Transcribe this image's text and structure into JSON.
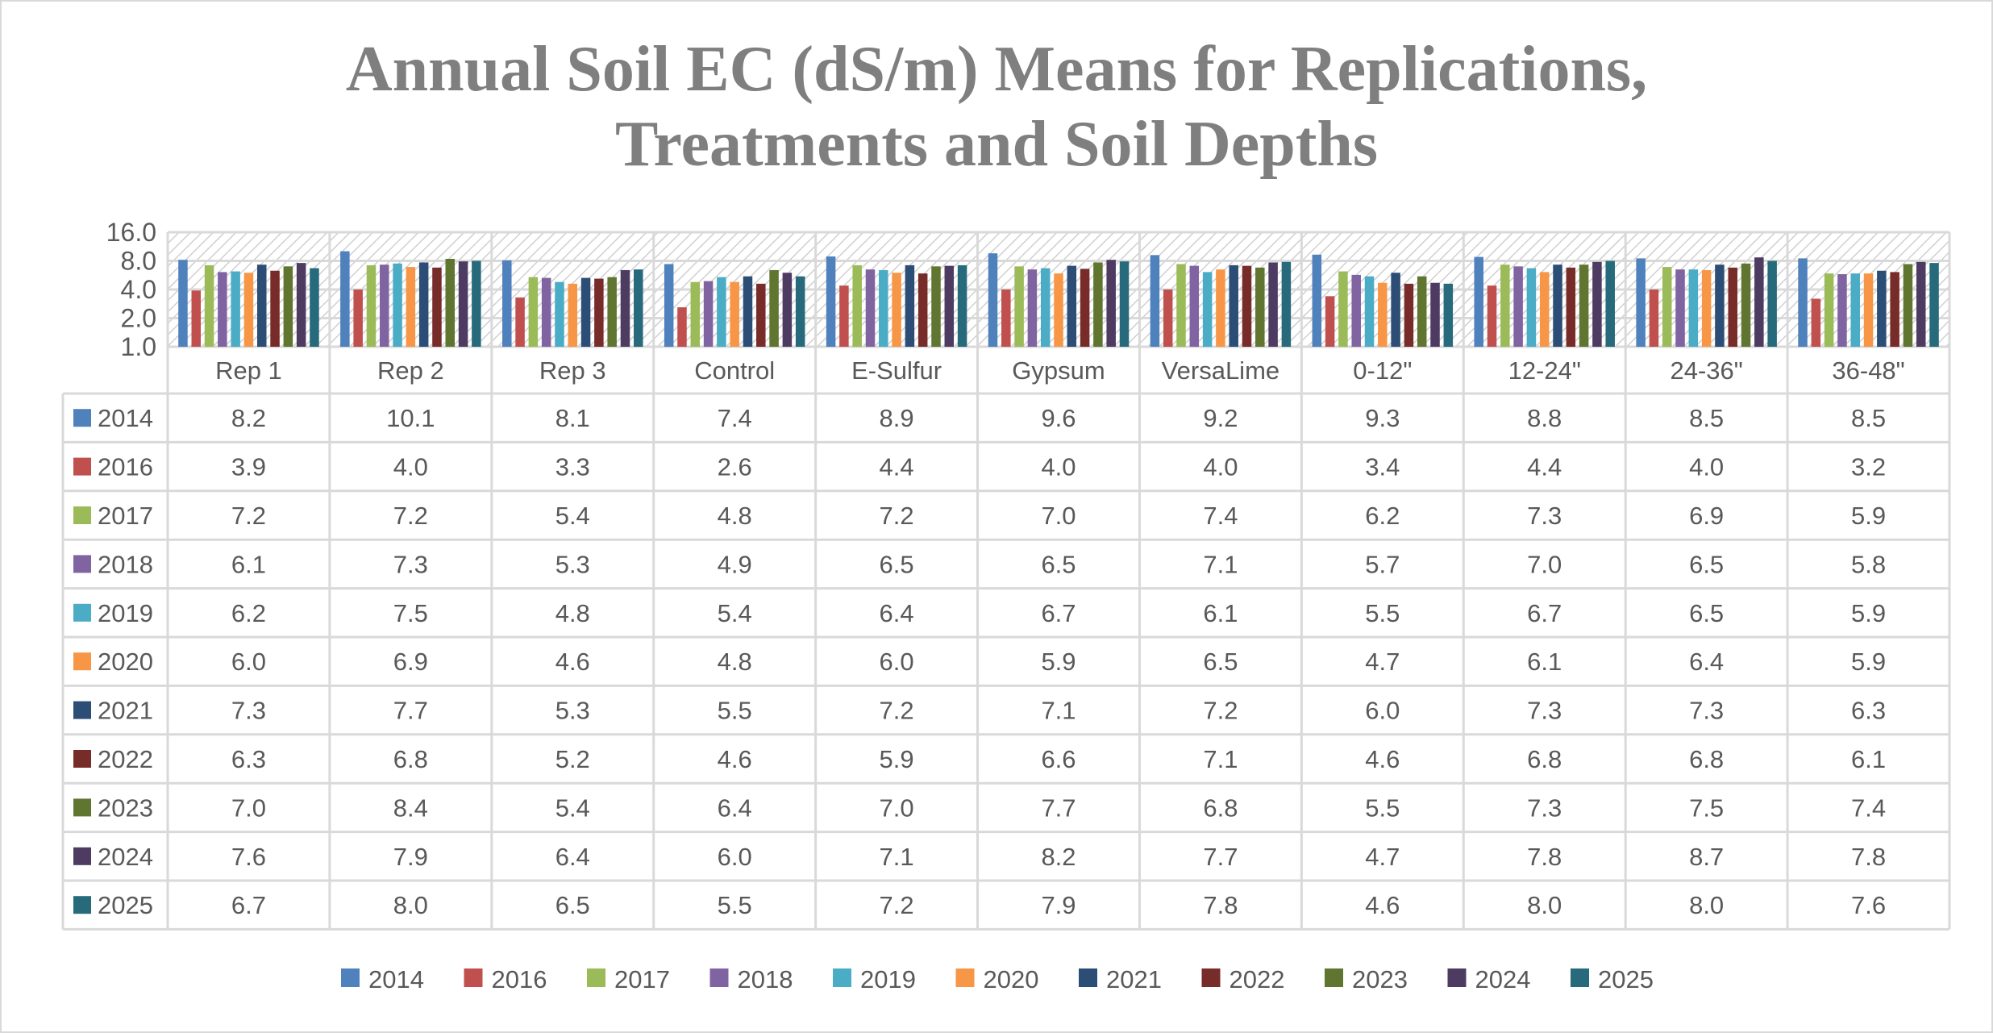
{
  "chart_data": {
    "type": "bar",
    "title_lines": [
      "Annual Soil EC (dS/m) Means for Replications,",
      "Treatments and Soil Depths"
    ],
    "y_scale": "log2",
    "ylim": [
      1.0,
      16.0
    ],
    "y_ticks": [
      "1.0",
      "2.0",
      "4.0",
      "8.0",
      "16.0"
    ],
    "grid": true,
    "plot_background": "diagonal hatch",
    "legend_placement": "bottom",
    "data_table": true,
    "categories": [
      "Rep 1",
      "Rep 2",
      "Rep 3",
      "Control",
      "E-Sulfur",
      "Gypsum",
      "VersaLime",
      "0-12\"",
      "12-24\"",
      "24-36\"",
      "36-48\""
    ],
    "series": [
      {
        "name": "2014",
        "color": "#4F81BD",
        "values": [
          8.2,
          10.1,
          8.1,
          7.4,
          8.9,
          9.6,
          9.2,
          9.3,
          8.8,
          8.5,
          8.5
        ]
      },
      {
        "name": "2016",
        "color": "#C0504D",
        "values": [
          3.9,
          4.0,
          3.3,
          2.6,
          4.4,
          4.0,
          4.0,
          3.4,
          4.4,
          4.0,
          3.2
        ]
      },
      {
        "name": "2017",
        "color": "#9BBB59",
        "values": [
          7.2,
          7.2,
          5.4,
          4.8,
          7.2,
          7.0,
          7.4,
          6.2,
          7.3,
          6.9,
          5.9
        ]
      },
      {
        "name": "2018",
        "color": "#8064A2",
        "values": [
          6.1,
          7.3,
          5.3,
          4.9,
          6.5,
          6.5,
          7.1,
          5.7,
          7.0,
          6.5,
          5.8
        ]
      },
      {
        "name": "2019",
        "color": "#4BACC6",
        "values": [
          6.2,
          7.5,
          4.8,
          5.4,
          6.4,
          6.7,
          6.1,
          5.5,
          6.7,
          6.5,
          5.9
        ]
      },
      {
        "name": "2020",
        "color": "#F79646",
        "values": [
          6.0,
          6.9,
          4.6,
          4.8,
          6.0,
          5.9,
          6.5,
          4.7,
          6.1,
          6.4,
          5.9
        ]
      },
      {
        "name": "2021",
        "color": "#2C4D75",
        "values": [
          7.3,
          7.7,
          5.3,
          5.5,
          7.2,
          7.1,
          7.2,
          6.0,
          7.3,
          7.3,
          6.3
        ]
      },
      {
        "name": "2022",
        "color": "#772C2A",
        "values": [
          6.3,
          6.8,
          5.2,
          4.6,
          5.9,
          6.6,
          7.1,
          4.6,
          6.8,
          6.8,
          6.1
        ]
      },
      {
        "name": "2023",
        "color": "#5F7530",
        "values": [
          7.0,
          8.4,
          5.4,
          6.4,
          7.0,
          7.7,
          6.8,
          5.5,
          7.3,
          7.5,
          7.4
        ]
      },
      {
        "name": "2024",
        "color": "#4D3B62",
        "values": [
          7.6,
          7.9,
          6.4,
          6.0,
          7.1,
          8.2,
          7.7,
          4.7,
          7.8,
          8.7,
          7.8
        ]
      },
      {
        "name": "2025",
        "color": "#276A7C",
        "values": [
          6.7,
          8.0,
          6.5,
          5.5,
          7.2,
          7.9,
          7.8,
          4.6,
          8.0,
          8.0,
          7.6
        ]
      }
    ]
  }
}
